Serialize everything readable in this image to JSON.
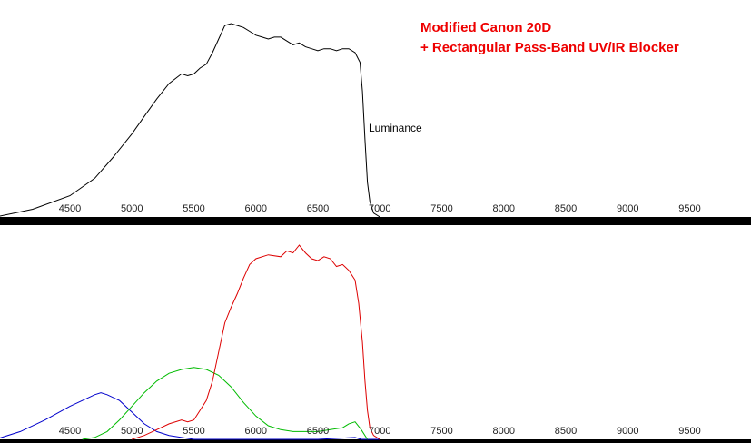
{
  "title": {
    "line1": "Modified Canon 20D",
    "line2": "+ Rectangular Pass-Band UV/IR Blocker",
    "color": "#ee0000"
  },
  "chart_data": [
    {
      "type": "line",
      "title": "",
      "xlabel": "",
      "ylabel": "",
      "xlim": [
        3900,
        9900
      ],
      "ylim": [
        0,
        1
      ],
      "xticks": [
        4500,
        5000,
        5500,
        6000,
        6500,
        7000,
        7500,
        8000,
        8500,
        9000,
        9500
      ],
      "tick_labels": [
        "4500",
        "5000",
        "5500",
        "6000",
        "6500",
        "7000",
        "7500",
        "8000",
        "8500",
        "9000",
        "9500"
      ],
      "series": [
        {
          "name": "Luminance",
          "color": "#000000",
          "x": [
            3900,
            4200,
            4500,
            4700,
            4850,
            5000,
            5100,
            5200,
            5300,
            5400,
            5450,
            5500,
            5550,
            5600,
            5650,
            5700,
            5750,
            5800,
            5850,
            5900,
            5950,
            6000,
            6050,
            6100,
            6150,
            6200,
            6250,
            6300,
            6350,
            6400,
            6450,
            6500,
            6550,
            6600,
            6650,
            6700,
            6750,
            6800,
            6840,
            6860,
            6880,
            6900,
            6920,
            6950,
            7000
          ],
          "values": [
            0.0,
            0.04,
            0.11,
            0.2,
            0.31,
            0.43,
            0.52,
            0.61,
            0.69,
            0.74,
            0.73,
            0.74,
            0.77,
            0.79,
            0.85,
            0.92,
            0.99,
            1.0,
            0.99,
            0.98,
            0.96,
            0.94,
            0.93,
            0.92,
            0.93,
            0.93,
            0.91,
            0.89,
            0.9,
            0.88,
            0.87,
            0.86,
            0.87,
            0.87,
            0.86,
            0.87,
            0.87,
            0.85,
            0.8,
            0.65,
            0.4,
            0.18,
            0.08,
            0.02,
            0.0
          ]
        }
      ]
    },
    {
      "type": "line",
      "title": "",
      "xlabel": "",
      "ylabel": "",
      "xlim": [
        3900,
        9900
      ],
      "ylim": [
        0,
        1
      ],
      "xticks": [
        4500,
        5000,
        5500,
        6000,
        6500,
        7000,
        7500,
        8000,
        8500,
        9000,
        9500
      ],
      "tick_labels": [
        "4500",
        "5000",
        "5500",
        "6000",
        "6500",
        "7000",
        "7500",
        "8000",
        "8500",
        "9000",
        "9500"
      ],
      "series": [
        {
          "color": "#0000cc",
          "x": [
            3900,
            4100,
            4300,
            4500,
            4600,
            4700,
            4750,
            4800,
            4900,
            5000,
            5100,
            5200,
            5300,
            5400,
            5500,
            5600,
            5800,
            6000,
            6500,
            6800,
            6850,
            6900,
            7000
          ],
          "values": [
            0.0,
            0.04,
            0.1,
            0.17,
            0.2,
            0.23,
            0.24,
            0.23,
            0.2,
            0.14,
            0.08,
            0.04,
            0.02,
            0.01,
            0.0,
            0.0,
            0.0,
            0.0,
            0.0,
            0.01,
            0.0,
            0.0,
            0.0
          ]
        },
        {
          "color": "#00bb00",
          "x": [
            4600,
            4700,
            4800,
            4900,
            5000,
            5100,
            5200,
            5300,
            5400,
            5500,
            5600,
            5700,
            5800,
            5900,
            6000,
            6100,
            6200,
            6300,
            6400,
            6500,
            6600,
            6700,
            6750,
            6800,
            6850,
            6900
          ],
          "values": [
            0.0,
            0.01,
            0.04,
            0.1,
            0.17,
            0.24,
            0.3,
            0.34,
            0.36,
            0.37,
            0.36,
            0.33,
            0.27,
            0.19,
            0.12,
            0.07,
            0.05,
            0.04,
            0.04,
            0.04,
            0.05,
            0.06,
            0.08,
            0.09,
            0.05,
            0.0
          ]
        },
        {
          "color": "#dd0000",
          "x": [
            5000,
            5100,
            5200,
            5300,
            5400,
            5450,
            5500,
            5600,
            5650,
            5700,
            5750,
            5800,
            5850,
            5900,
            5950,
            6000,
            6100,
            6200,
            6250,
            6300,
            6350,
            6400,
            6450,
            6500,
            6550,
            6600,
            6650,
            6700,
            6750,
            6800,
            6830,
            6860,
            6880,
            6900,
            6920,
            6950,
            7000
          ],
          "values": [
            0.0,
            0.02,
            0.05,
            0.08,
            0.1,
            0.09,
            0.1,
            0.2,
            0.3,
            0.45,
            0.6,
            0.68,
            0.75,
            0.83,
            0.9,
            0.93,
            0.95,
            0.94,
            0.97,
            0.96,
            1.0,
            0.96,
            0.93,
            0.92,
            0.94,
            0.93,
            0.89,
            0.9,
            0.87,
            0.82,
            0.7,
            0.5,
            0.3,
            0.15,
            0.06,
            0.02,
            0.0
          ]
        }
      ]
    }
  ]
}
